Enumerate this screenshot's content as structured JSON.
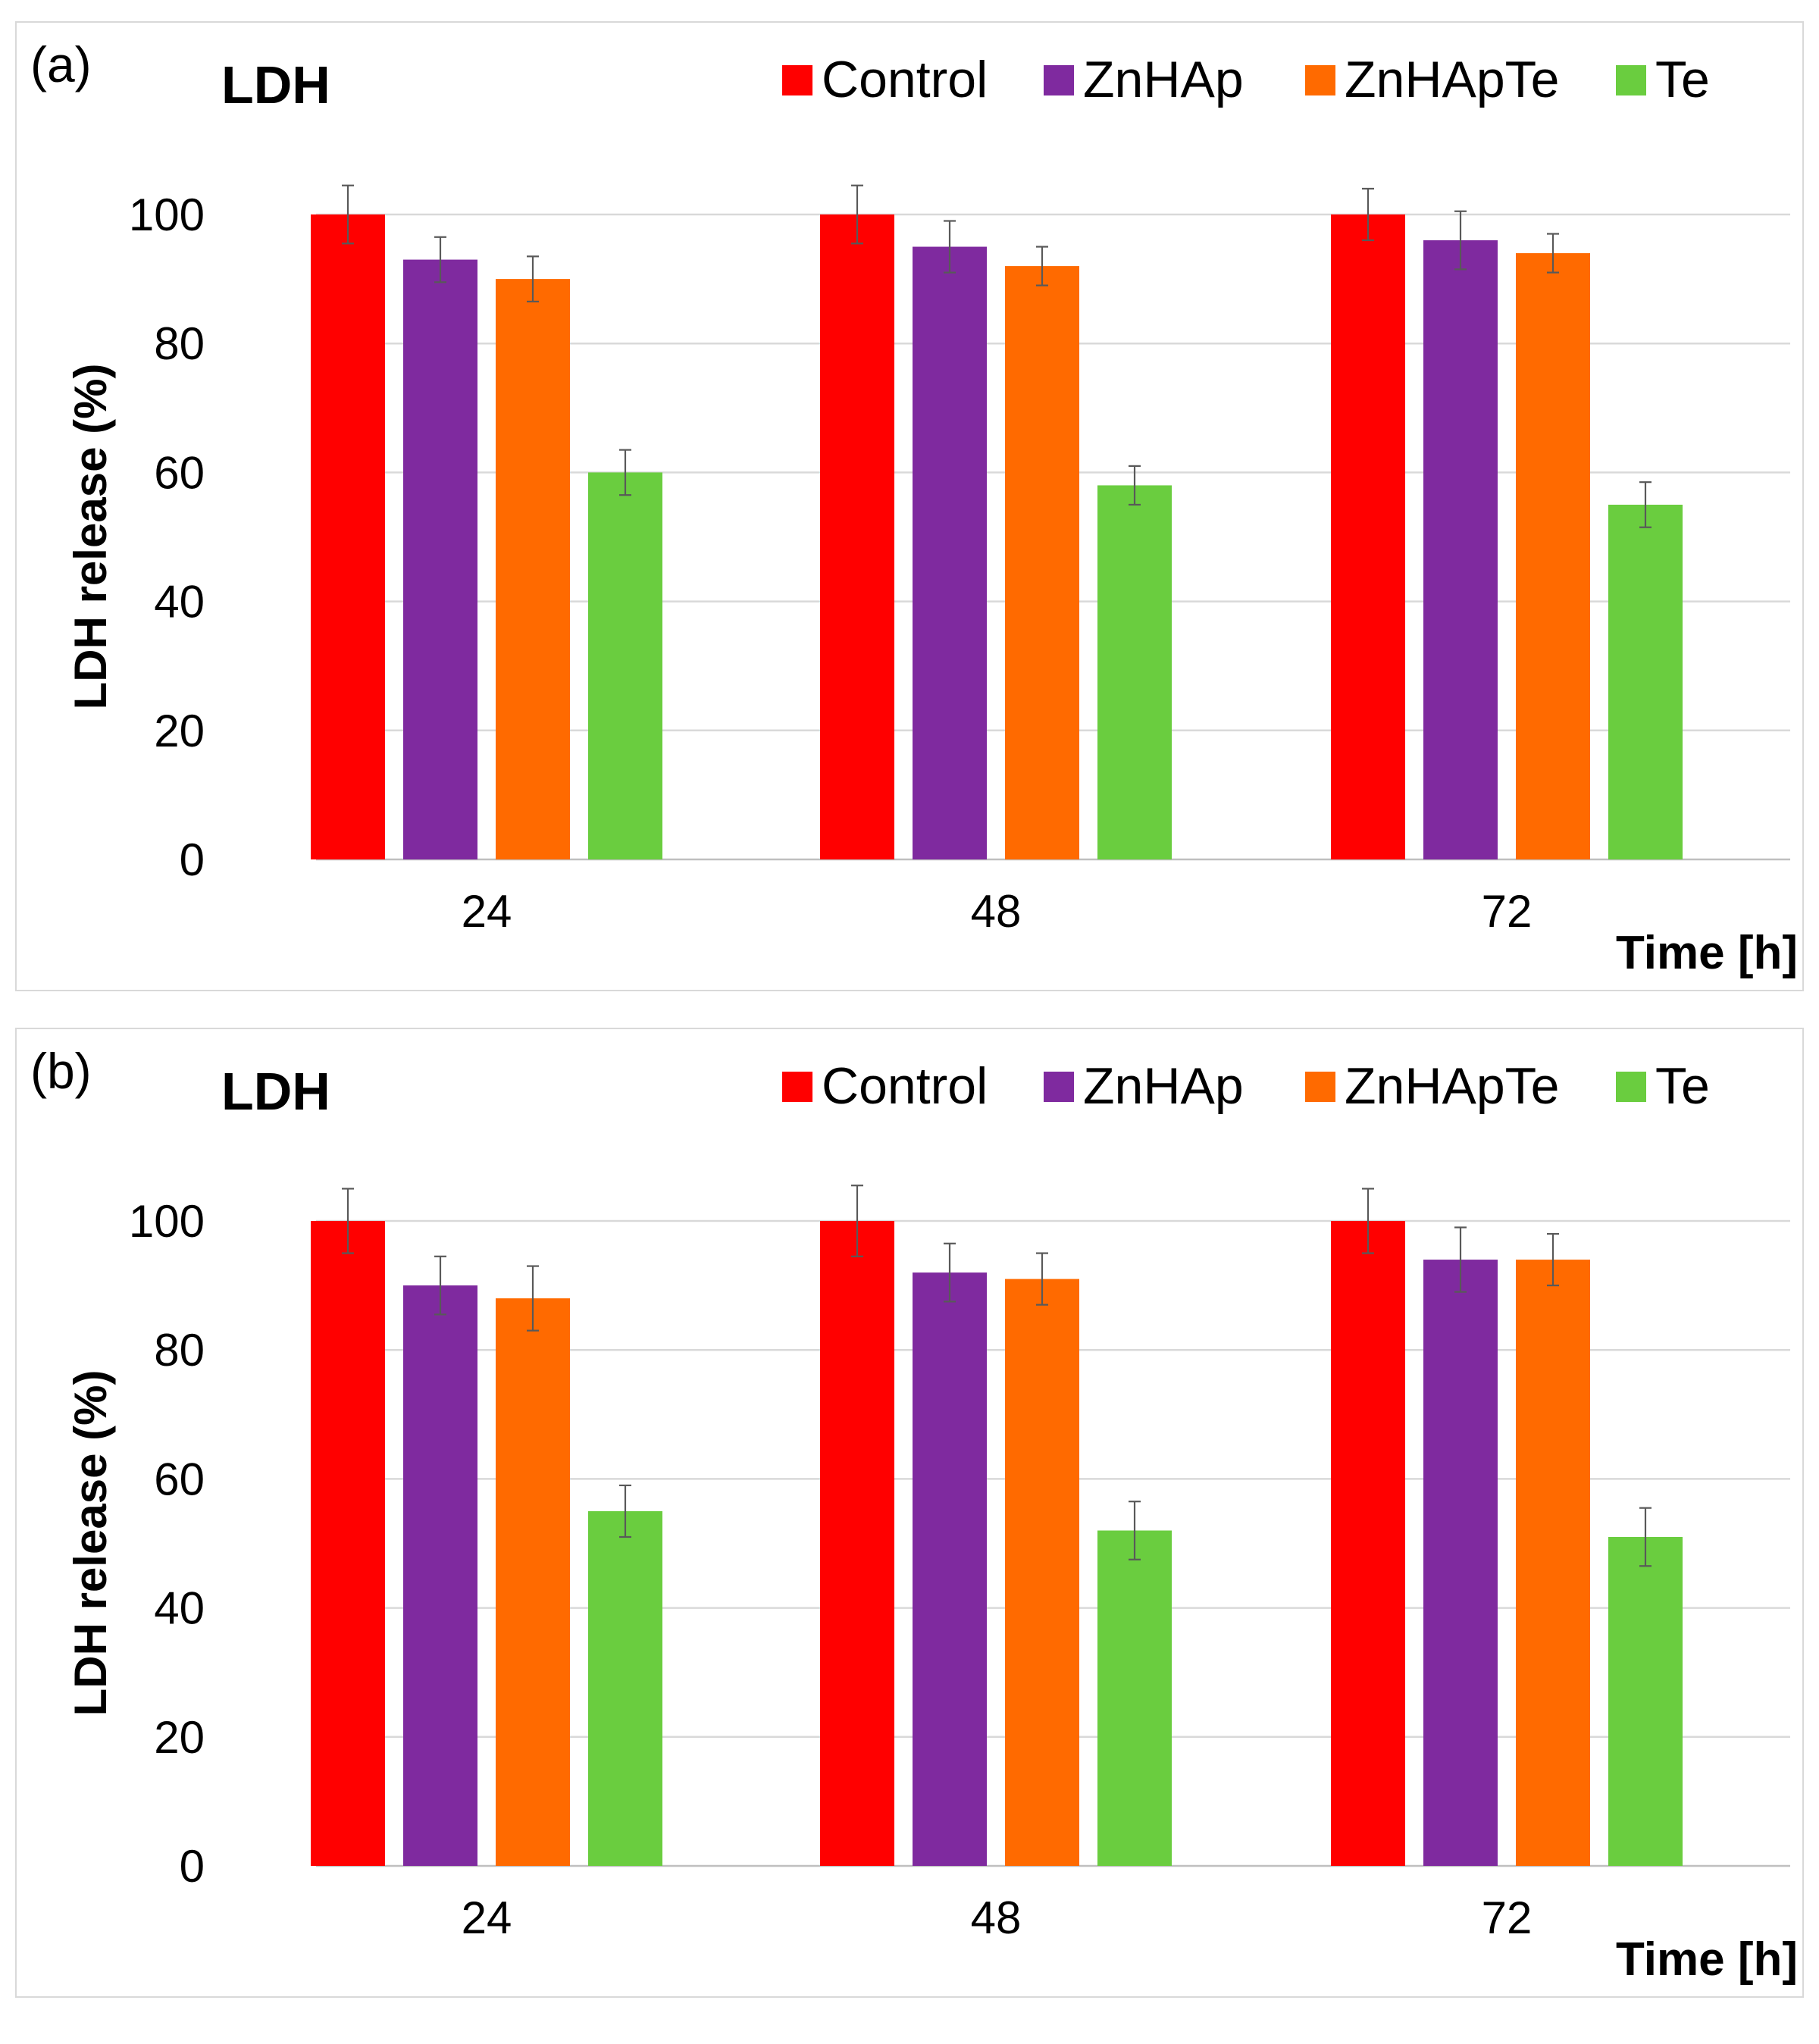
{
  "chart_data": [
    {
      "type": "bar",
      "panel_label": "(a)",
      "title": "LDH",
      "categories": [
        "24",
        "48",
        "72"
      ],
      "series": [
        {
          "name": "Control",
          "color": "#ff0000",
          "values": [
            100,
            100,
            100
          ],
          "errors": [
            4.5,
            4.5,
            4
          ]
        },
        {
          "name": "ZnHAp",
          "color": "#7f2a9f",
          "values": [
            93,
            95,
            96
          ],
          "errors": [
            3.5,
            4,
            4.5
          ]
        },
        {
          "name": "ZnHApTe",
          "color": "#ff6a00",
          "values": [
            90,
            92,
            94
          ],
          "errors": [
            3.5,
            3,
            3
          ]
        },
        {
          "name": "Te",
          "color": "#6acd3f",
          "values": [
            60,
            58,
            55
          ],
          "errors": [
            3.5,
            3,
            3.5
          ]
        }
      ],
      "xlabel": "Time [h]",
      "ylabel": "LDH release (%)",
      "ylim": [
        0,
        110
      ],
      "yticks": [
        "0",
        "20",
        "40",
        "60",
        "80",
        "100"
      ],
      "grid": true,
      "legend_position": "top"
    },
    {
      "type": "bar",
      "panel_label": "(b)",
      "title": "LDH",
      "categories": [
        "24",
        "48",
        "72"
      ],
      "series": [
        {
          "name": "Control",
          "color": "#ff0000",
          "values": [
            100,
            100,
            100
          ],
          "errors": [
            5,
            5.5,
            5
          ]
        },
        {
          "name": "ZnHAp",
          "color": "#7f2a9f",
          "values": [
            90,
            92,
            94
          ],
          "errors": [
            4.5,
            4.5,
            5
          ]
        },
        {
          "name": "ZnHApTe",
          "color": "#ff6a00",
          "values": [
            88,
            91,
            94
          ],
          "errors": [
            5,
            4,
            4
          ]
        },
        {
          "name": "Te",
          "color": "#6acd3f",
          "values": [
            55,
            52,
            51
          ],
          "errors": [
            4,
            4.5,
            4.5
          ]
        }
      ],
      "xlabel": "Time [h]",
      "ylabel": "LDH release (%)",
      "ylim": [
        0,
        110
      ],
      "yticks": [
        "0",
        "20",
        "40",
        "60",
        "80",
        "100"
      ],
      "grid": true,
      "legend_position": "top"
    }
  ]
}
